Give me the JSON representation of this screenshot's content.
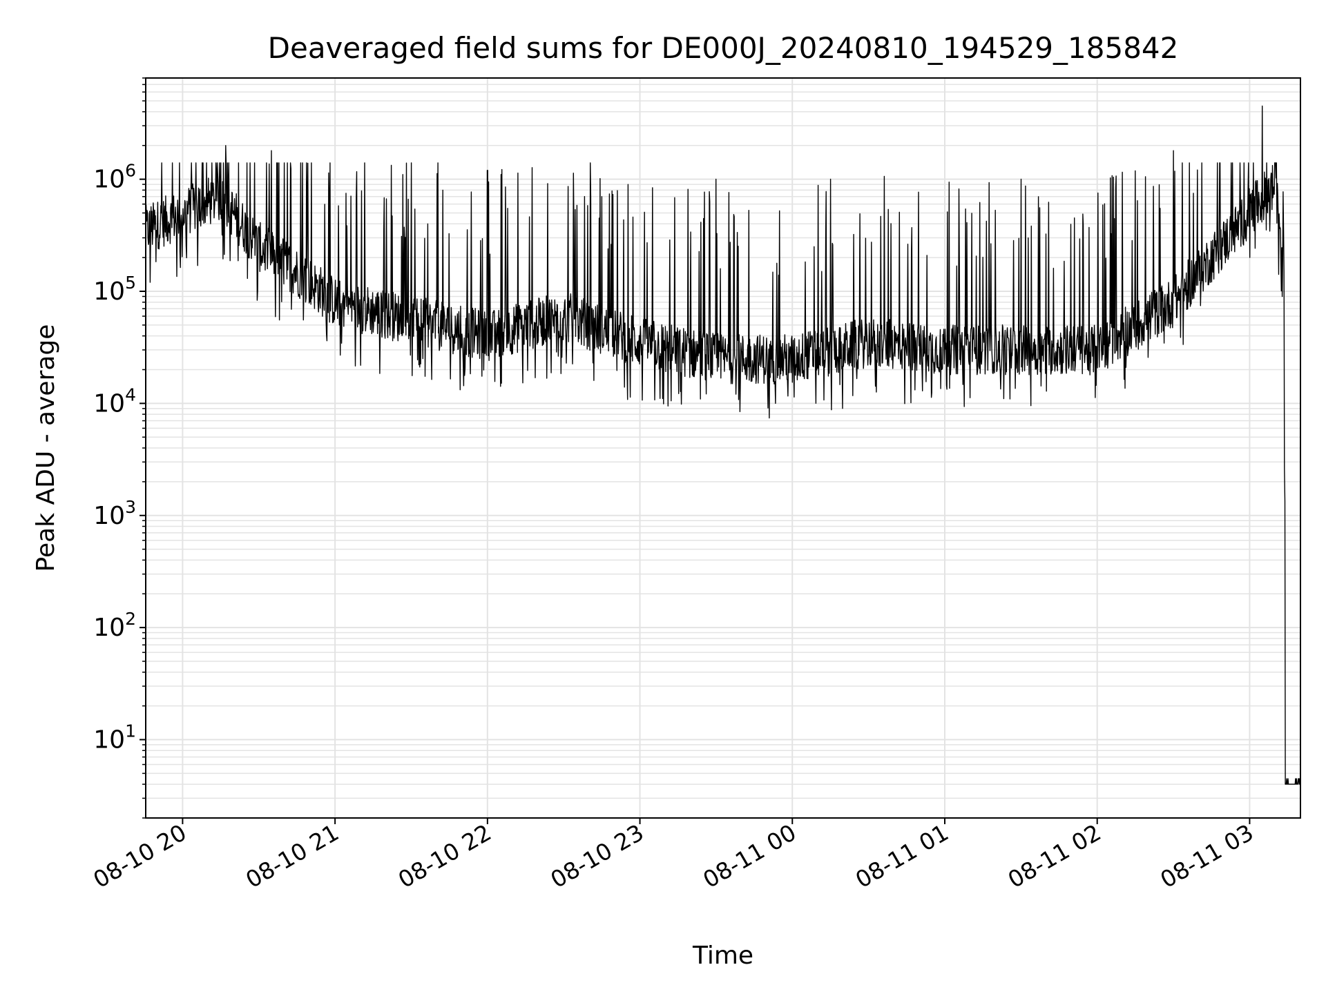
{
  "chart_data": {
    "type": "line",
    "title": "Deaveraged field sums for DE000J_20240810_194529_185842",
    "xlabel": "Time",
    "ylabel": "Peak ADU - average",
    "y_scale": "log",
    "ylim": [
      2,
      8000000
    ],
    "xlim": [
      "2024-08-10T19:45:29",
      "2024-08-11T03:20:00"
    ],
    "grid": true,
    "legend": "none",
    "line_color": "#000000",
    "grid_color": "#e3e3e3",
    "x_ticks": [
      {
        "t": "2024-08-10T20:00",
        "label": "08-10 20"
      },
      {
        "t": "2024-08-10T21:00",
        "label": "08-10 21"
      },
      {
        "t": "2024-08-10T22:00",
        "label": "08-10 22"
      },
      {
        "t": "2024-08-10T23:00",
        "label": "08-10 23"
      },
      {
        "t": "2024-08-11T00:00",
        "label": "08-11 00"
      },
      {
        "t": "2024-08-11T01:00",
        "label": "08-11 01"
      },
      {
        "t": "2024-08-11T02:00",
        "label": "08-11 02"
      },
      {
        "t": "2024-08-11T03:00",
        "label": "08-11 03"
      }
    ],
    "y_ticks": [
      {
        "value": 10,
        "base": "10",
        "exp": "1"
      },
      {
        "value": 100,
        "base": "10",
        "exp": "2"
      },
      {
        "value": 1000,
        "base": "10",
        "exp": "3"
      },
      {
        "value": 10000,
        "base": "10",
        "exp": "4"
      },
      {
        "value": 100000,
        "base": "10",
        "exp": "5"
      },
      {
        "value": 1000000,
        "base": "10",
        "exp": "6"
      }
    ],
    "series": [
      {
        "baseline_profile": [
          {
            "t": "2024-08-10T19:45:29",
            "y": 350000
          },
          {
            "t": "2024-08-10T20:00",
            "y": 500000
          },
          {
            "t": "2024-08-10T20:15",
            "y": 700000
          },
          {
            "t": "2024-08-10T20:30",
            "y": 250000
          },
          {
            "t": "2024-08-10T20:45",
            "y": 150000
          },
          {
            "t": "2024-08-10T21:00",
            "y": 80000
          },
          {
            "t": "2024-08-10T21:30",
            "y": 55000
          },
          {
            "t": "2024-08-10T22:00",
            "y": 40000
          },
          {
            "t": "2024-08-10T22:30",
            "y": 60000
          },
          {
            "t": "2024-08-10T23:00",
            "y": 35000
          },
          {
            "t": "2024-08-10T23:30",
            "y": 25000
          },
          {
            "t": "2024-08-11T00:00",
            "y": 25000
          },
          {
            "t": "2024-08-11T00:30",
            "y": 35000
          },
          {
            "t": "2024-08-11T01:00",
            "y": 30000
          },
          {
            "t": "2024-08-11T01:30",
            "y": 30000
          },
          {
            "t": "2024-08-11T02:00",
            "y": 30000
          },
          {
            "t": "2024-08-11T02:30",
            "y": 80000
          },
          {
            "t": "2024-08-11T02:45",
            "y": 200000
          },
          {
            "t": "2024-08-11T03:00",
            "y": 500000
          },
          {
            "t": "2024-08-11T03:10",
            "y": 900000
          },
          {
            "t": "2024-08-11T03:13",
            "y": 200000
          },
          {
            "t": "2024-08-11T03:15",
            "y": 4
          },
          {
            "t": "2024-08-11T03:20",
            "y": 4
          }
        ],
        "peaks": [
          {
            "t": "2024-08-10T20:17",
            "y": 2000000
          },
          {
            "t": "2024-08-10T20:35",
            "y": 1800000
          },
          {
            "t": "2024-08-10T21:30",
            "y": 1400000
          },
          {
            "t": "2024-08-10T22:00",
            "y": 1200000
          },
          {
            "t": "2024-08-10T22:45",
            "y": 700000
          },
          {
            "t": "2024-08-10T23:30",
            "y": 1000000
          },
          {
            "t": "2024-08-11T00:15",
            "y": 1000000
          },
          {
            "t": "2024-08-11T01:30",
            "y": 1000000
          },
          {
            "t": "2024-08-11T02:30",
            "y": 1800000
          },
          {
            "t": "2024-08-11T03:05",
            "y": 4500000
          }
        ],
        "min_level": 4
      }
    ]
  }
}
